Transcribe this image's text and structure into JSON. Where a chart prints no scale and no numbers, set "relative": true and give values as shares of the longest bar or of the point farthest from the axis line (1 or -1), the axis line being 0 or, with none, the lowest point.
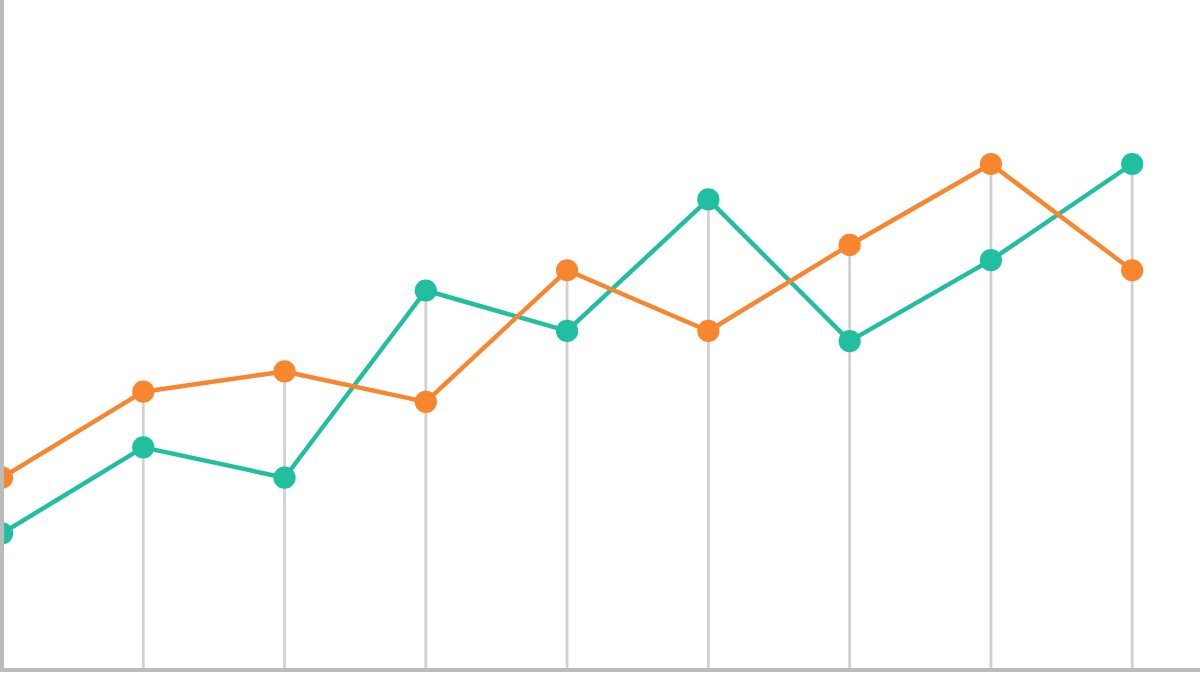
{
  "chart_data": {
    "type": "line",
    "relative": true,
    "categories": [
      null,
      null,
      null,
      null,
      null,
      null,
      null,
      null,
      null
    ],
    "series": [
      {
        "color": "#1fbf9f",
        "values": [
          0.27,
          0.44,
          0.38,
          0.75,
          0.67,
          0.93,
          0.65,
          0.81,
          1.0
        ]
      },
      {
        "color": "#f8862f",
        "values": [
          0.38,
          0.55,
          0.59,
          0.53,
          0.79,
          0.67,
          0.84,
          1.0,
          0.79
        ]
      }
    ],
    "marker": "circle",
    "line_style": "solid",
    "grid": "x"
  }
}
